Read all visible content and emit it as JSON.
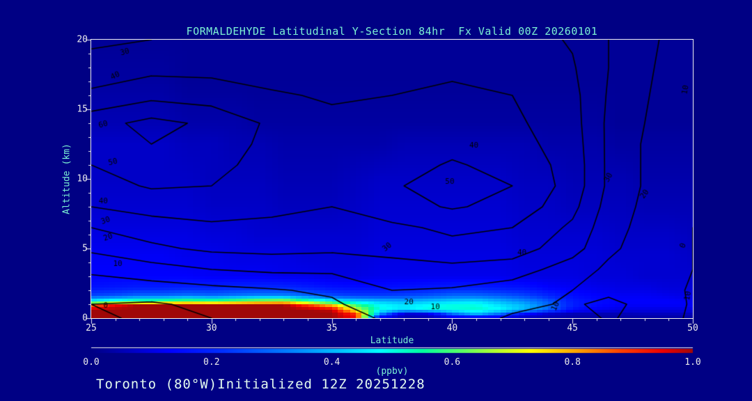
{
  "title": "FORMALDEHYDE Latitudinal Y-Section 84hr  Fx Valid 00Z 20260101",
  "caption": "Toronto (80°W)Initialized 12Z 20251228",
  "colors": {
    "background": "#000084",
    "title_text": "#7cf2d4",
    "tick_text": "#ececec",
    "axis_line": "#f2f2f2",
    "contour_line": "#000000",
    "caption_text": "#e4fbef"
  },
  "chart_data": {
    "type": "heatmap",
    "title": "FORMALDEHYDE Latitudinal Y-Section 84hr  Fx Valid 00Z 20260101",
    "xlabel": "Latitude",
    "ylabel": "Altitude (km)",
    "units": "(ppbv)",
    "xlim": [
      25,
      50
    ],
    "ylim": [
      0,
      20
    ],
    "x_ticks": [
      25,
      30,
      35,
      40,
      45,
      50
    ],
    "x_minor_step": 1,
    "y_ticks": [
      0,
      5,
      10,
      15,
      20
    ],
    "y_minor_step": 1,
    "grid": false,
    "colorbar": {
      "min": 0.0,
      "max": 1.0,
      "tick_labels": [
        "0.0",
        "0.2",
        "0.4",
        "0.6",
        "0.8",
        "1.0"
      ],
      "tick_values": [
        0.0,
        0.2,
        0.4,
        0.6,
        0.8,
        1.0
      ],
      "stops": [
        [
          0.0,
          0,
          0,
          132
        ],
        [
          0.05,
          0,
          0,
          180
        ],
        [
          0.13,
          0,
          0,
          255
        ],
        [
          0.22,
          0,
          48,
          255
        ],
        [
          0.33,
          0,
          128,
          255
        ],
        [
          0.42,
          0,
          200,
          255
        ],
        [
          0.48,
          0,
          255,
          255
        ],
        [
          0.55,
          0,
          255,
          160
        ],
        [
          0.62,
          96,
          255,
          96
        ],
        [
          0.68,
          190,
          255,
          40
        ],
        [
          0.73,
          255,
          255,
          0
        ],
        [
          0.81,
          255,
          160,
          0
        ],
        [
          0.88,
          255,
          64,
          0
        ],
        [
          0.95,
          238,
          0,
          0
        ],
        [
          1.0,
          160,
          8,
          8
        ]
      ]
    },
    "fill_field": {
      "comment_units_ppbv": true,
      "lat": [
        25,
        26,
        27,
        28,
        29,
        30,
        31,
        32,
        33,
        34,
        35,
        36,
        37,
        38,
        39,
        40,
        41,
        42,
        43,
        44,
        45,
        46,
        47,
        48,
        49,
        50
      ],
      "alt": [
        0,
        0.3,
        0.6,
        0.9,
        1.2,
        1.6,
        2.2,
        3,
        4.5,
        6,
        8,
        10,
        12.5,
        14,
        17,
        20
      ],
      "values": [
        [
          1,
          1,
          1,
          1,
          1,
          1,
          1,
          1,
          1,
          1,
          1,
          0.95,
          0.06,
          0.04,
          0.04,
          0.05,
          0.05,
          0.05,
          0.04,
          0.04,
          0.03,
          0.03,
          0.03,
          0.03,
          0.03,
          0.03
        ],
        [
          1,
          1,
          1,
          1,
          1,
          1,
          1,
          1,
          1,
          1,
          1,
          0.9,
          0.35,
          0.08,
          0.1,
          0.3,
          0.4,
          0.3,
          0.15,
          0.08,
          0.05,
          0.05,
          0.05,
          0.06,
          0.06,
          0.06
        ],
        [
          1,
          1,
          1,
          1,
          1,
          1,
          1,
          1,
          1,
          1,
          0.98,
          0.7,
          0.5,
          0.45,
          0.5,
          0.5,
          0.52,
          0.48,
          0.4,
          0.3,
          0.15,
          0.12,
          0.1,
          0.1,
          0.1,
          0.1
        ],
        [
          0.85,
          0.95,
          1,
          1,
          1,
          1,
          1,
          1,
          1,
          0.9,
          0.8,
          0.6,
          0.48,
          0.45,
          0.48,
          0.5,
          0.5,
          0.45,
          0.4,
          0.3,
          0.18,
          0.14,
          0.12,
          0.12,
          0.12,
          0.12
        ],
        [
          0.5,
          0.55,
          0.6,
          0.62,
          0.65,
          0.62,
          0.66,
          0.7,
          0.72,
          0.6,
          0.5,
          0.45,
          0.42,
          0.4,
          0.42,
          0.44,
          0.45,
          0.4,
          0.35,
          0.28,
          0.18,
          0.15,
          0.13,
          0.13,
          0.13,
          0.12
        ],
        [
          0.25,
          0.27,
          0.3,
          0.3,
          0.32,
          0.3,
          0.32,
          0.34,
          0.34,
          0.3,
          0.26,
          0.24,
          0.24,
          0.25,
          0.27,
          0.3,
          0.3,
          0.28,
          0.25,
          0.2,
          0.15,
          0.13,
          0.12,
          0.12,
          0.11,
          0.1
        ],
        [
          0.16,
          0.17,
          0.18,
          0.18,
          0.19,
          0.19,
          0.2,
          0.2,
          0.2,
          0.18,
          0.16,
          0.15,
          0.15,
          0.16,
          0.17,
          0.18,
          0.18,
          0.17,
          0.16,
          0.13,
          0.12,
          0.11,
          0.1,
          0.1,
          0.09,
          0.09
        ],
        [
          0.13,
          0.13,
          0.13,
          0.13,
          0.13,
          0.12,
          0.12,
          0.12,
          0.11,
          0.11,
          0.1,
          0.1,
          0.11,
          0.11,
          0.11,
          0.11,
          0.11,
          0.11,
          0.1,
          0.1,
          0.1,
          0.09,
          0.09,
          0.08,
          0.08,
          0.08
        ],
        [
          0.12,
          0.12,
          0.12,
          0.12,
          0.11,
          0.11,
          0.1,
          0.1,
          0.1,
          0.09,
          0.09,
          0.09,
          0.1,
          0.1,
          0.1,
          0.1,
          0.1,
          0.1,
          0.09,
          0.09,
          0.09,
          0.09,
          0.08,
          0.08,
          0.08,
          0.07
        ],
        [
          0.1,
          0.1,
          0.1,
          0.1,
          0.1,
          0.09,
          0.09,
          0.08,
          0.08,
          0.08,
          0.08,
          0.08,
          0.09,
          0.09,
          0.09,
          0.09,
          0.09,
          0.09,
          0.08,
          0.08,
          0.08,
          0.08,
          0.07,
          0.07,
          0.07,
          0.06
        ],
        [
          0.08,
          0.08,
          0.08,
          0.08,
          0.08,
          0.07,
          0.07,
          0.07,
          0.06,
          0.06,
          0.06,
          0.07,
          0.08,
          0.08,
          0.08,
          0.08,
          0.08,
          0.08,
          0.07,
          0.07,
          0.06,
          0.06,
          0.06,
          0.05,
          0.05,
          0.05
        ],
        [
          0.07,
          0.07,
          0.07,
          0.07,
          0.07,
          0.06,
          0.06,
          0.06,
          0.05,
          0.05,
          0.05,
          0.06,
          0.07,
          0.07,
          0.07,
          0.07,
          0.07,
          0.07,
          0.06,
          0.06,
          0.05,
          0.05,
          0.05,
          0.04,
          0.04,
          0.04
        ],
        [
          0.07,
          0.07,
          0.07,
          0.07,
          0.06,
          0.06,
          0.05,
          0.05,
          0.04,
          0.04,
          0.04,
          0.04,
          0.04,
          0.05,
          0.05,
          0.05,
          0.05,
          0.05,
          0.05,
          0.04,
          0.04,
          0.04,
          0.03,
          0.03,
          0.03,
          0.03
        ],
        [
          0.05,
          0.05,
          0.05,
          0.05,
          0.04,
          0.04,
          0.04,
          0.03,
          0.03,
          0.03,
          0.03,
          0.03,
          0.03,
          0.03,
          0.03,
          0.03,
          0.03,
          0.03,
          0.03,
          0.03,
          0.03,
          0.03,
          0.02,
          0.02,
          0.02,
          0.02
        ],
        [
          0.03,
          0.03,
          0.03,
          0.03,
          0.02,
          0.02,
          0.02,
          0.02,
          0.02,
          0.02,
          0.02,
          0.02,
          0.02,
          0.02,
          0.02,
          0.02,
          0.02,
          0.02,
          0.02,
          0.02,
          0.02,
          0.02,
          0.02,
          0.02,
          0.02,
          0.02
        ],
        [
          0.02,
          0.02,
          0.02,
          0.02,
          0.02,
          0.02,
          0.02,
          0.02,
          0.02,
          0.02,
          0.02,
          0.02,
          0.02,
          0.02,
          0.02,
          0.02,
          0.02,
          0.02,
          0.02,
          0.02,
          0.02,
          0.02,
          0.02,
          0.02,
          0.02,
          0.02
        ]
      ]
    },
    "contour_field": {
      "levels": [
        0,
        10,
        20,
        30,
        40,
        50,
        60
      ],
      "lat": [
        25,
        27.5,
        30,
        32.5,
        35,
        37.5,
        40,
        42.5,
        45,
        46.5,
        48,
        49,
        50
      ],
      "alt": [
        0,
        1,
        2,
        3.5,
        5,
        6.5,
        8,
        9.5,
        11,
        12.5,
        14,
        16,
        18,
        20
      ],
      "values": [
        [
          2,
          -2,
          0,
          1,
          5,
          12,
          14,
          9,
          6,
          11,
          7,
          3,
          -2
        ],
        [
          0,
          -1,
          2,
          4,
          8,
          18,
          16,
          12,
          9,
          12,
          8,
          3,
          -1
        ],
        [
          4,
          5,
          7,
          9,
          12,
          20,
          19,
          15,
          10,
          8,
          5,
          2,
          -1
        ],
        [
          12,
          16,
          20,
          22,
          22,
          25,
          27,
          25,
          15,
          8,
          4,
          1,
          0
        ],
        [
          22,
          28,
          32,
          33,
          32,
          34,
          37,
          35,
          24,
          12,
          6,
          2,
          0
        ],
        [
          30,
          35,
          38,
          38,
          36,
          38,
          42,
          40,
          28,
          14,
          7,
          2,
          0
        ],
        [
          40,
          44,
          45,
          42,
          40,
          46,
          51,
          47,
          33,
          16,
          8,
          3,
          1
        ],
        [
          46,
          51,
          50,
          44,
          42,
          49,
          54,
          50,
          36,
          18,
          9,
          3,
          1
        ],
        [
          50,
          55,
          53,
          46,
          42,
          46,
          51,
          47,
          36,
          18,
          9,
          4,
          1
        ],
        [
          53,
          60,
          56,
          47,
          43,
          44,
          47,
          44,
          35,
          18,
          9,
          4,
          2
        ],
        [
          56,
          63,
          58,
          48,
          42,
          42,
          44,
          42,
          34,
          18,
          10,
          5,
          2
        ],
        [
          42,
          47,
          45,
          41,
          39,
          40,
          42,
          40,
          33,
          19,
          11,
          6,
          3
        ],
        [
          34,
          37,
          37,
          36,
          36,
          37,
          38,
          37,
          31,
          20,
          12,
          7,
          4
        ],
        [
          28,
          30,
          32,
          33,
          34,
          35,
          36,
          35,
          29,
          20,
          13,
          8,
          5
        ]
      ]
    },
    "contour_labels": [
      {
        "lat": 26.4,
        "alt": 19.1,
        "text": "30",
        "rot": -15
      },
      {
        "lat": 26.0,
        "alt": 17.4,
        "text": "40",
        "rot": -25
      },
      {
        "lat": 25.5,
        "alt": 13.9,
        "text": "60",
        "rot": -15
      },
      {
        "lat": 25.9,
        "alt": 11.2,
        "text": "50",
        "rot": -12
      },
      {
        "lat": 25.5,
        "alt": 8.4,
        "text": "40",
        "rot": 0
      },
      {
        "lat": 25.6,
        "alt": 7.0,
        "text": "30",
        "rot": -20
      },
      {
        "lat": 25.7,
        "alt": 5.8,
        "text": "20",
        "rot": -20
      },
      {
        "lat": 26.1,
        "alt": 3.9,
        "text": "10",
        "rot": 0
      },
      {
        "lat": 25.6,
        "alt": 0.9,
        "text": "0",
        "rot": 0
      },
      {
        "lat": 40.9,
        "alt": 12.4,
        "text": "40",
        "rot": 0
      },
      {
        "lat": 39.9,
        "alt": 9.8,
        "text": "50",
        "rot": 0
      },
      {
        "lat": 37.3,
        "alt": 5.1,
        "text": "30",
        "rot": -40
      },
      {
        "lat": 42.9,
        "alt": 4.7,
        "text": "40",
        "rot": 0
      },
      {
        "lat": 46.5,
        "alt": 10.1,
        "text": "30",
        "rot": -60
      },
      {
        "lat": 48.0,
        "alt": 8.9,
        "text": "20",
        "rot": -55
      },
      {
        "lat": 49.6,
        "alt": 5.2,
        "text": "0",
        "rot": -70
      },
      {
        "lat": 49.7,
        "alt": 16.4,
        "text": "10",
        "rot": -80
      },
      {
        "lat": 38.2,
        "alt": 1.15,
        "text": "20",
        "rot": 0
      },
      {
        "lat": 39.3,
        "alt": 0.8,
        "text": "10",
        "rot": 0
      },
      {
        "lat": 44.3,
        "alt": 0.85,
        "text": "10",
        "rot": -65
      },
      {
        "lat": 49.8,
        "alt": 1.6,
        "text": "10",
        "rot": -80
      }
    ]
  }
}
